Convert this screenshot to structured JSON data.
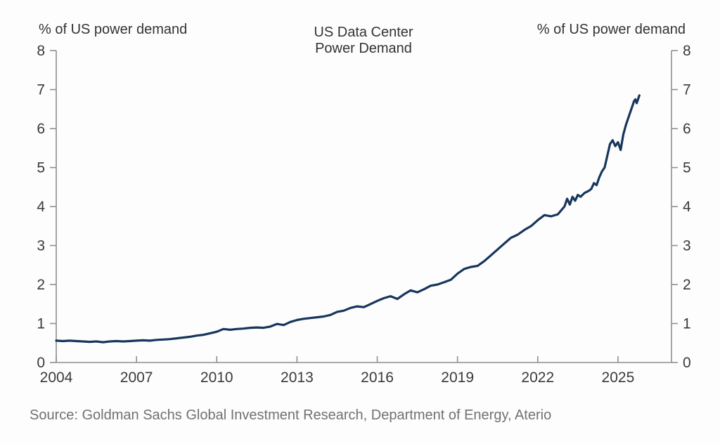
{
  "chart_data": {
    "type": "line",
    "title_line1": "US Data Center",
    "title_line2": "Power Demand",
    "left_axis_label": "% of US power demand",
    "right_axis_label": "% of US power demand",
    "x_ticks": [
      2004,
      2007,
      2010,
      2013,
      2016,
      2019,
      2022,
      2025
    ],
    "y_ticks": [
      0,
      1,
      2,
      3,
      4,
      5,
      6,
      7,
      8
    ],
    "xlim": [
      2004,
      2027
    ],
    "ylim": [
      0,
      8
    ],
    "grid": false,
    "legend": "none",
    "line_color": "#17365c",
    "axis_color": "#8f8f8f",
    "line_width": 3.2,
    "series": [
      {
        "name": "US data center power demand (% of US power demand)",
        "points": [
          [
            2004,
            0.56
          ],
          [
            2004.25,
            0.55
          ],
          [
            2004.5,
            0.56
          ],
          [
            2004.75,
            0.55
          ],
          [
            2005,
            0.54
          ],
          [
            2005.25,
            0.53
          ],
          [
            2005.5,
            0.54
          ],
          [
            2005.75,
            0.52
          ],
          [
            2006,
            0.54
          ],
          [
            2006.25,
            0.55
          ],
          [
            2006.5,
            0.54
          ],
          [
            2006.75,
            0.55
          ],
          [
            2007,
            0.56
          ],
          [
            2007.25,
            0.57
          ],
          [
            2007.5,
            0.56
          ],
          [
            2007.75,
            0.58
          ],
          [
            2008,
            0.59
          ],
          [
            2008.25,
            0.6
          ],
          [
            2008.5,
            0.62
          ],
          [
            2008.75,
            0.64
          ],
          [
            2009,
            0.66
          ],
          [
            2009.25,
            0.69
          ],
          [
            2009.5,
            0.71
          ],
          [
            2009.75,
            0.75
          ],
          [
            2010,
            0.79
          ],
          [
            2010.25,
            0.86
          ],
          [
            2010.5,
            0.84
          ],
          [
            2010.75,
            0.86
          ],
          [
            2011,
            0.87
          ],
          [
            2011.25,
            0.89
          ],
          [
            2011.5,
            0.9
          ],
          [
            2011.75,
            0.89
          ],
          [
            2012,
            0.92
          ],
          [
            2012.25,
            0.99
          ],
          [
            2012.5,
            0.96
          ],
          [
            2012.75,
            1.04
          ],
          [
            2013,
            1.09
          ],
          [
            2013.25,
            1.12
          ],
          [
            2013.5,
            1.14
          ],
          [
            2013.75,
            1.16
          ],
          [
            2014,
            1.18
          ],
          [
            2014.25,
            1.22
          ],
          [
            2014.5,
            1.3
          ],
          [
            2014.75,
            1.33
          ],
          [
            2015,
            1.4
          ],
          [
            2015.25,
            1.44
          ],
          [
            2015.5,
            1.42
          ],
          [
            2015.75,
            1.5
          ],
          [
            2016,
            1.58
          ],
          [
            2016.25,
            1.65
          ],
          [
            2016.5,
            1.7
          ],
          [
            2016.75,
            1.63
          ],
          [
            2017,
            1.75
          ],
          [
            2017.25,
            1.85
          ],
          [
            2017.5,
            1.8
          ],
          [
            2017.75,
            1.88
          ],
          [
            2018,
            1.97
          ],
          [
            2018.25,
            2.0
          ],
          [
            2018.5,
            2.06
          ],
          [
            2018.75,
            2.12
          ],
          [
            2019,
            2.28
          ],
          [
            2019.25,
            2.4
          ],
          [
            2019.5,
            2.45
          ],
          [
            2019.75,
            2.48
          ],
          [
            2020,
            2.6
          ],
          [
            2020.25,
            2.75
          ],
          [
            2020.5,
            2.9
          ],
          [
            2020.75,
            3.05
          ],
          [
            2021,
            3.2
          ],
          [
            2021.25,
            3.28
          ],
          [
            2021.5,
            3.4
          ],
          [
            2021.75,
            3.5
          ],
          [
            2022,
            3.65
          ],
          [
            2022.25,
            3.78
          ],
          [
            2022.5,
            3.75
          ],
          [
            2022.75,
            3.8
          ],
          [
            2023,
            4.0
          ],
          [
            2023.1,
            4.2
          ],
          [
            2023.2,
            4.05
          ],
          [
            2023.3,
            4.25
          ],
          [
            2023.4,
            4.15
          ],
          [
            2023.5,
            4.3
          ],
          [
            2023.6,
            4.25
          ],
          [
            2023.75,
            4.35
          ],
          [
            2023.9,
            4.4
          ],
          [
            2024,
            4.45
          ],
          [
            2024.1,
            4.6
          ],
          [
            2024.2,
            4.55
          ],
          [
            2024.3,
            4.75
          ],
          [
            2024.4,
            4.9
          ],
          [
            2024.5,
            5.0
          ],
          [
            2024.6,
            5.3
          ],
          [
            2024.7,
            5.6
          ],
          [
            2024.8,
            5.7
          ],
          [
            2024.9,
            5.55
          ],
          [
            2025,
            5.65
          ],
          [
            2025.1,
            5.45
          ],
          [
            2025.2,
            5.85
          ],
          [
            2025.3,
            6.1
          ],
          [
            2025.4,
            6.3
          ],
          [
            2025.5,
            6.5
          ],
          [
            2025.6,
            6.7
          ],
          [
            2025.65,
            6.75
          ],
          [
            2025.7,
            6.65
          ],
          [
            2025.8,
            6.85
          ]
        ]
      }
    ]
  },
  "footer": {
    "source_text": "Source: Goldman Sachs Global Investment Research, Department of Energy, Aterio"
  }
}
